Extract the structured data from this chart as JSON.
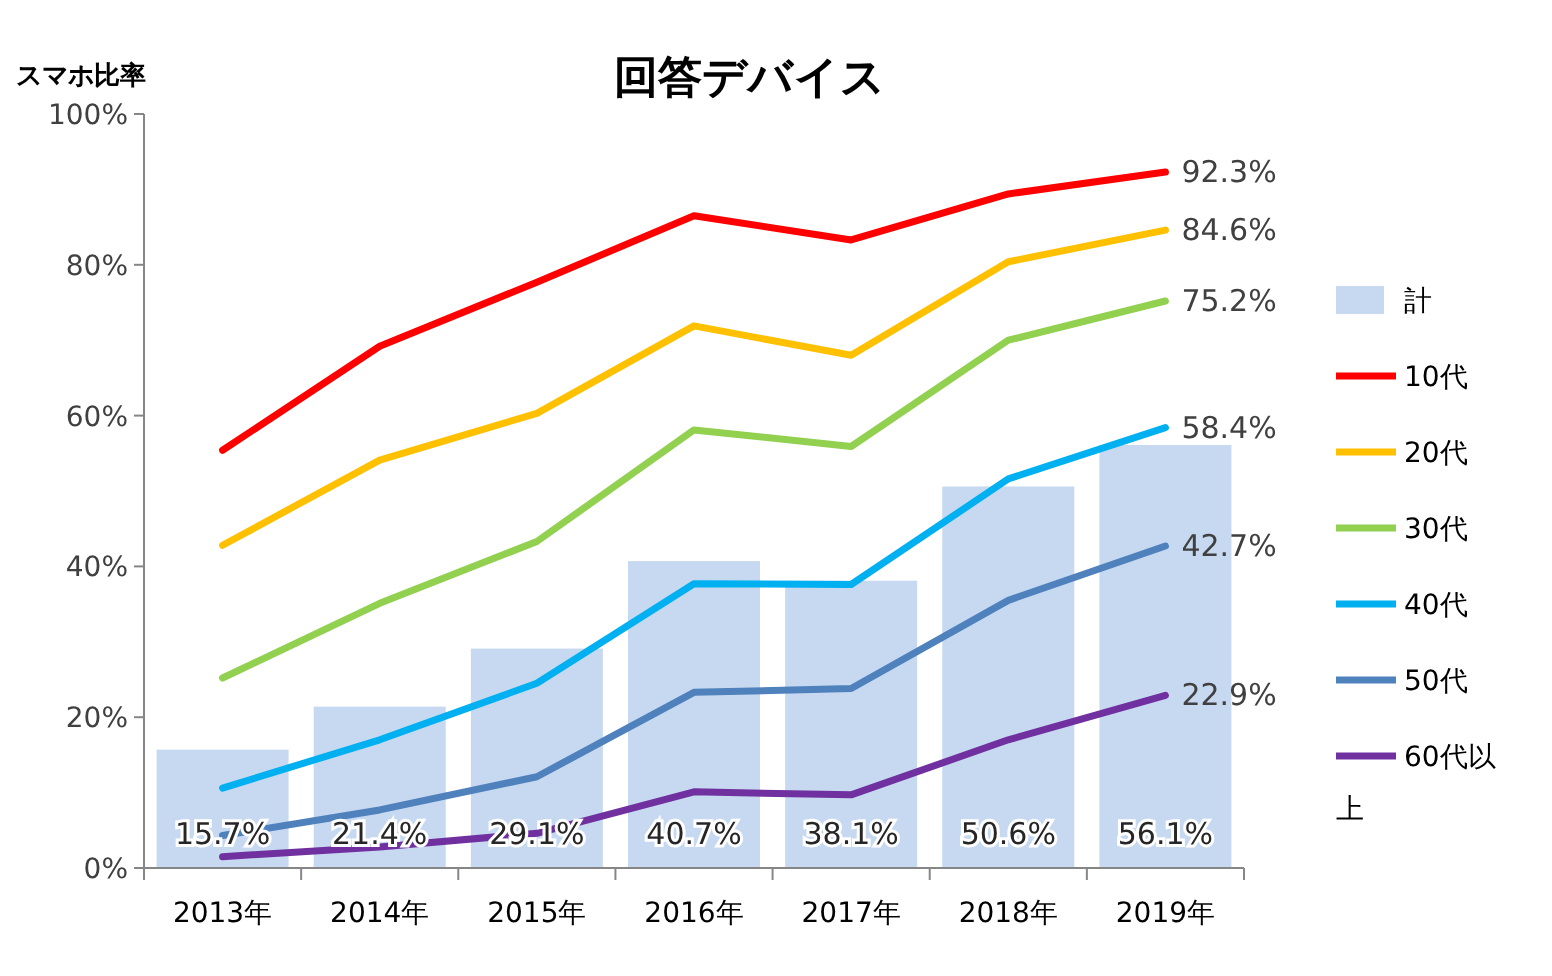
{
  "chart_data": {
    "type": "line",
    "title": "回答デバイス",
    "ylabel": "スマホ比率",
    "categories": [
      "2013年",
      "2014年",
      "2015年",
      "2016年",
      "2017年",
      "2018年",
      "2019年"
    ],
    "ylim": [
      0,
      100
    ],
    "yticks": [
      {
        "value": 0,
        "label": "0%"
      },
      {
        "value": 20,
        "label": "20%"
      },
      {
        "value": 40,
        "label": "40%"
      },
      {
        "value": 60,
        "label": "60%"
      },
      {
        "value": 80,
        "label": "80%"
      },
      {
        "value": 100,
        "label": "100%"
      }
    ],
    "legend": "right",
    "grid": false,
    "marker": "none",
    "line_style": "solid",
    "series": [
      {
        "name": "計",
        "type": "bar",
        "color": "#c6d9f1",
        "values": [
          15.7,
          21.4,
          29.1,
          40.7,
          38.1,
          50.6,
          56.1
        ],
        "value_labels": [
          "15.7%",
          "21.4%",
          "29.1%",
          "40.7%",
          "38.1%",
          "50.6%",
          "56.1%"
        ]
      },
      {
        "name": "10代",
        "color": "#ff0000",
        "values": [
          55.4,
          69.2,
          77.7,
          86.5,
          83.3,
          89.4,
          92.3
        ],
        "value_labels": [
          null,
          null,
          null,
          null,
          null,
          null,
          "92.3%"
        ]
      },
      {
        "name": "20代",
        "color": "#ffc000",
        "values": [
          42.8,
          54.1,
          60.3,
          71.9,
          68.0,
          80.4,
          84.6
        ],
        "value_labels": [
          null,
          null,
          null,
          null,
          null,
          null,
          "84.6%"
        ]
      },
      {
        "name": "30代",
        "color": "#92d050",
        "values": [
          25.2,
          35.1,
          43.3,
          58.1,
          55.9,
          70.0,
          75.2
        ],
        "value_labels": [
          null,
          null,
          null,
          null,
          null,
          null,
          "75.2%"
        ]
      },
      {
        "name": "40代",
        "color": "#00b0f0",
        "values": [
          10.6,
          17.0,
          24.5,
          37.7,
          37.6,
          51.6,
          58.4
        ],
        "value_labels": [
          null,
          null,
          null,
          null,
          null,
          null,
          "58.4%"
        ]
      },
      {
        "name": "50代",
        "color": "#4f81bd",
        "values": [
          4.3,
          7.7,
          12.1,
          23.3,
          23.8,
          35.5,
          42.7
        ],
        "value_labels": [
          null,
          null,
          null,
          null,
          null,
          null,
          "42.7%"
        ]
      },
      {
        "name": "60代以上",
        "color": "#7030a0",
        "values": [
          1.5,
          2.8,
          4.6,
          10.1,
          9.7,
          17.0,
          22.9
        ],
        "value_labels": [
          null,
          null,
          null,
          null,
          null,
          null,
          "22.9%"
        ]
      }
    ]
  }
}
